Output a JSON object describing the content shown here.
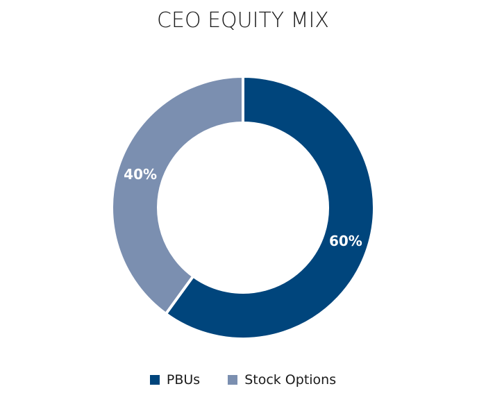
{
  "chart_data": {
    "type": "pie",
    "title": "CEO EQUITY MIX",
    "donut": true,
    "legend_position": "bottom",
    "series": [
      {
        "name": "PBUs",
        "value": 60,
        "label": "60%",
        "color": "#00457c"
      },
      {
        "name": "Stock Options",
        "value": 40,
        "label": "40%",
        "color": "#7b8fb0"
      }
    ]
  }
}
